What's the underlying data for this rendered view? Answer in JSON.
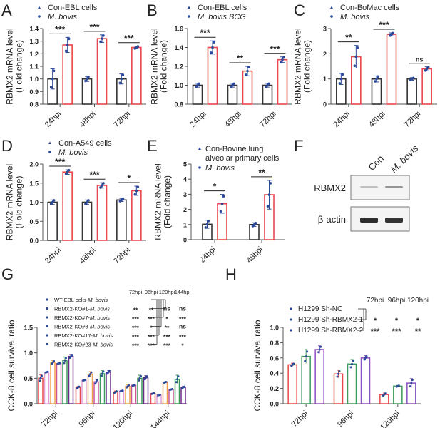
{
  "panel_labels": {
    "A": "A",
    "B": "B",
    "C": "C",
    "D": "D",
    "E": "E",
    "F": "F",
    "G": "G",
    "H": "H"
  },
  "colors": {
    "control": "#333333",
    "treated": "#e8474c",
    "dot": "#2c4a9a",
    "axis": "#555555"
  },
  "chart_data": [
    {
      "id": "A",
      "type": "bar",
      "legend": [
        "Con-EBL cells",
        "M. bovis"
      ],
      "ylabel": [
        "RBMX2 mRNA level",
        "(Fold change)"
      ],
      "categories": [
        "24hpi",
        "48hpi",
        "72hpi"
      ],
      "ylim": [
        0.8,
        1.4
      ],
      "yticks": [
        "0.8",
        "0.9",
        "1.0",
        "1.1",
        "1.2",
        "1.3",
        "1.4"
      ],
      "series": [
        {
          "name": "Con-EBL cells",
          "values": [
            1.0,
            1.0,
            1.0
          ],
          "err": [
            0.08,
            0.02,
            0.04
          ]
        },
        {
          "name": "M. bovis",
          "values": [
            1.27,
            1.32,
            1.25
          ],
          "err": [
            0.06,
            0.03,
            0.01
          ]
        }
      ],
      "significance": [
        "***",
        "***",
        "***"
      ]
    },
    {
      "id": "B",
      "type": "bar",
      "legend": [
        "Con-EBL cells",
        "M. bovis BCG"
      ],
      "ylabel": [
        "RBMX2 mRNA level",
        "(Fold change)"
      ],
      "categories": [
        "24hpi",
        "48hpi",
        "72hpi"
      ],
      "ylim": [
        0.8,
        1.6
      ],
      "yticks": [
        "0.8",
        "1.0",
        "1.2",
        "1.4",
        "1.6"
      ],
      "series": [
        {
          "name": "Con-EBL cells",
          "values": [
            1.0,
            1.0,
            1.0
          ],
          "err": [
            0.02,
            0.02,
            0.02
          ]
        },
        {
          "name": "M. bovis BCG",
          "values": [
            1.4,
            1.15,
            1.27
          ],
          "err": [
            0.07,
            0.05,
            0.03
          ]
        }
      ],
      "significance": [
        "***",
        "**",
        "***"
      ]
    },
    {
      "id": "C",
      "type": "bar",
      "legend": [
        "Con-BoMac cells",
        "M. bovis"
      ],
      "ylabel": [
        "RBMX2 mRNA level",
        "(Fold change)"
      ],
      "categories": [
        "24hpi",
        "48hpi",
        "72hpi"
      ],
      "ylim": [
        0,
        3
      ],
      "yticks": [
        "0",
        "1",
        "2",
        "3"
      ],
      "series": [
        {
          "name": "Con-BoMac cells",
          "values": [
            1.0,
            1.0,
            1.0
          ],
          "err": [
            0.22,
            0.12,
            0.05
          ]
        },
        {
          "name": "M. bovis",
          "values": [
            1.88,
            2.77,
            1.4
          ],
          "err": [
            0.45,
            0.06,
            0.08
          ]
        }
      ],
      "significance": [
        "**",
        "***",
        "ns"
      ]
    },
    {
      "id": "D",
      "type": "bar",
      "legend": [
        "Con-A549 cells",
        "M. bovis"
      ],
      "ylabel": [
        "RBMX2 mRNA level",
        "(Fold change)"
      ],
      "categories": [
        "24hpi",
        "48hpi",
        "72hpi"
      ],
      "ylim": [
        0,
        2.0
      ],
      "yticks": [
        "0.0",
        "0.5",
        "1.0",
        "1.5",
        "2.0"
      ],
      "series": [
        {
          "name": "Con-A549 cells",
          "values": [
            1.0,
            1.0,
            1.06
          ],
          "err": [
            0.06,
            0.06,
            0.04
          ]
        },
        {
          "name": "M. bovis",
          "values": [
            1.79,
            1.44,
            1.3
          ],
          "err": [
            0.06,
            0.07,
            0.12
          ]
        }
      ],
      "significance": [
        "***",
        "***",
        "*"
      ]
    },
    {
      "id": "E",
      "type": "bar",
      "legend": [
        "Con-Bovine lung alveolar primary cells",
        "M. bovis"
      ],
      "ylabel": [
        "RBMX2 mRNA level",
        "(Fold change)"
      ],
      "categories": [
        "24hpi",
        "48hpi"
      ],
      "ylim": [
        0,
        5
      ],
      "yticks": [
        "0",
        "1",
        "2",
        "3",
        "4",
        "5"
      ],
      "series": [
        {
          "name": "Con-Bovine lung alveolar primary cells",
          "values": [
            1.02,
            1.0
          ],
          "err": [
            0.27,
            0.12
          ]
        },
        {
          "name": "M. bovis",
          "values": [
            2.37,
            2.97
          ],
          "err": [
            0.62,
            0.95
          ]
        }
      ],
      "significance": [
        "*",
        "**"
      ]
    },
    {
      "id": "G",
      "type": "bar",
      "ylabel": [
        "CCK-8 cell survival ratio"
      ],
      "categories": [
        "72hpi",
        "96hpi",
        "120hpi",
        "144hpi"
      ],
      "ylim": [
        0,
        1.5
      ],
      "yticks": [
        "0.0",
        "0.5",
        "1.0",
        "1.5"
      ],
      "series": [
        {
          "name": "WT-EBL cells-M. bovis",
          "color": "#e8474c",
          "values": [
            0.5,
            0.32,
            0.23,
            0.2
          ],
          "err": [
            0.07,
            0.02,
            0.02,
            0.01
          ]
        },
        {
          "name": "RBMX2-KO#1-M. bovis",
          "color": "#e2a0d8",
          "values": [
            0.62,
            0.46,
            0.25,
            0.17
          ],
          "err": [
            0.01,
            0.01,
            0.01,
            0.01
          ]
        },
        {
          "name": "RBMX2-KO#7-M. bovis",
          "color": "#f0a04b",
          "values": [
            0.81,
            0.58,
            0.34,
            0.42
          ],
          "err": [
            0.04,
            0.05,
            0.03,
            0.01
          ]
        },
        {
          "name": "RBMX2-KO#8-M. bovis",
          "color": "#c9559a",
          "values": [
            0.79,
            0.43,
            0.36,
            0.28
          ],
          "err": [
            0.01,
            0.05,
            0.01,
            0.01
          ]
        },
        {
          "name": "RBMX2-KO#17-M. bovis",
          "color": "#3a9a5a",
          "values": [
            0.85,
            0.59,
            0.5,
            0.48
          ],
          "err": [
            0.07,
            0.06,
            0.06,
            0.08
          ]
        },
        {
          "name": "RBMX2-KO#23-M. bovis",
          "color": "#6a2a8a",
          "values": [
            0.93,
            0.62,
            0.51,
            0.32
          ],
          "err": [
            0.04,
            0.04,
            0.04,
            0.02
          ]
        }
      ],
      "sig_header": [
        "72hpi",
        "96hpi",
        "120hpi",
        "144hpi"
      ],
      "sig_table": [
        [
          "**",
          "**",
          "ns",
          "ns"
        ],
        [
          "***",
          "***",
          "*",
          "***"
        ],
        [
          "***",
          "*",
          "**",
          "ns"
        ],
        [
          "***",
          "***",
          "***",
          "***"
        ],
        [
          "***",
          "***",
          "***",
          "*"
        ]
      ]
    },
    {
      "id": "H",
      "type": "bar",
      "ylabel": [
        "CCK-8 cell survival ratio"
      ],
      "categories": [
        "72hpi",
        "96hpi",
        "120hpi"
      ],
      "ylim": [
        0,
        1.0
      ],
      "yticks": [
        "0.0",
        "0.2",
        "0.4",
        "0.6",
        "0.8",
        "1.0"
      ],
      "series": [
        {
          "name": "H1299 Sh-NC",
          "color": "#e8474c",
          "values": [
            0.51,
            0.39,
            0.12
          ],
          "err": [
            0.02,
            0.05,
            0.02
          ]
        },
        {
          "name": "H1299 Sh-RBMX2-1",
          "color": "#3a9a5a",
          "values": [
            0.62,
            0.52,
            0.23
          ],
          "err": [
            0.09,
            0.06,
            0.01
          ]
        },
        {
          "name": "H1299 Sh-RBMX2-2",
          "color": "#8a4fc0",
          "values": [
            0.71,
            0.6,
            0.27
          ],
          "err": [
            0.05,
            0.03,
            0.06
          ]
        }
      ],
      "sig_header": [
        "72hpi",
        "96hpi",
        "120hpi"
      ],
      "sig_table": [
        [
          "*",
          "*",
          "*"
        ],
        [
          "***",
          "***",
          "**"
        ]
      ]
    }
  ],
  "western_blot": {
    "lanes": [
      "Con",
      "M. bovis"
    ],
    "rows": [
      "RBMX2",
      "β-actin"
    ],
    "band_intensity": {
      "RBMX2": [
        0.25,
        0.45
      ],
      "β-actin": [
        0.95,
        0.92
      ]
    }
  }
}
